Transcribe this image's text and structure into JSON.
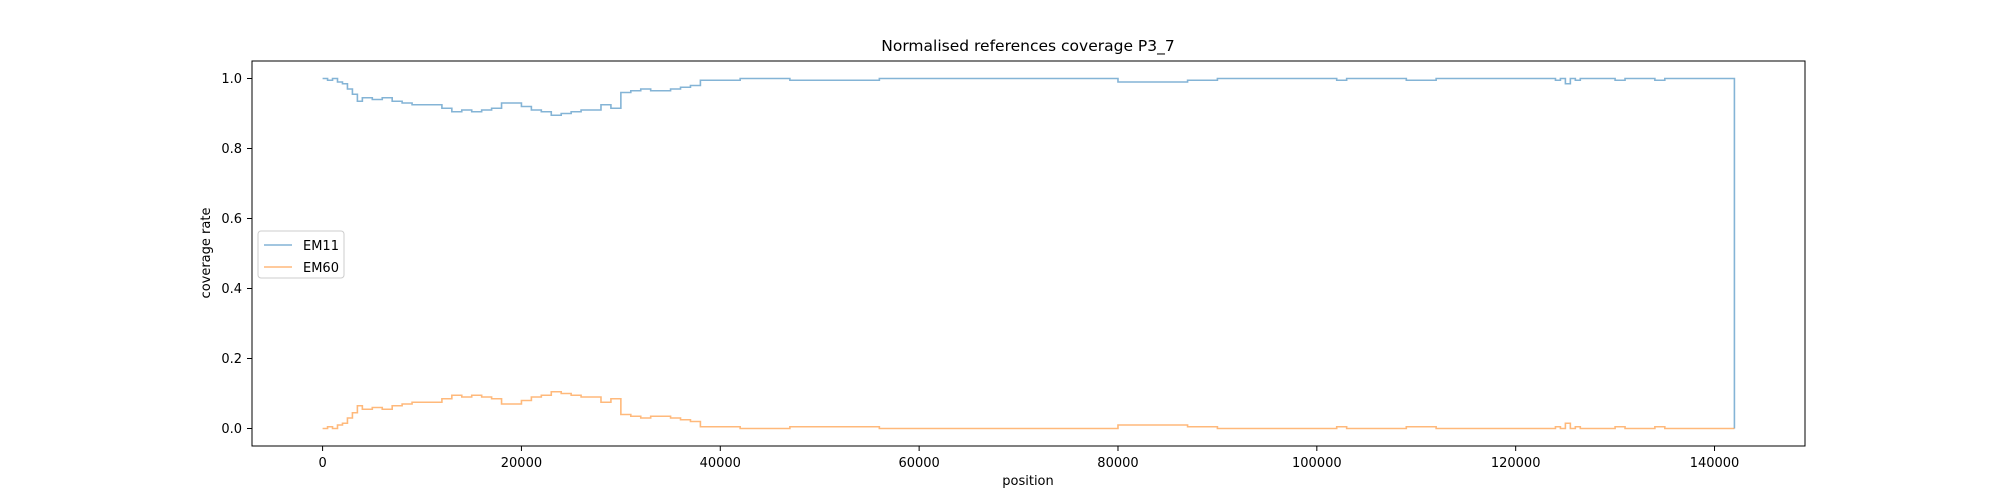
{
  "chart_data": {
    "type": "line",
    "title": "Normalised references coverage P3_7",
    "xlabel": "position",
    "ylabel": "coverage rate",
    "xlim": [
      -7100,
      149100
    ],
    "ylim": [
      -0.05,
      1.05
    ],
    "x_ticks": [
      0,
      20000,
      40000,
      60000,
      80000,
      100000,
      120000,
      140000
    ],
    "x_tick_labels": [
      "0",
      "20000",
      "40000",
      "60000",
      "80000",
      "100000",
      "120000",
      "140000"
    ],
    "y_ticks": [
      0.0,
      0.2,
      0.4,
      0.6,
      0.8,
      1.0
    ],
    "y_tick_labels": [
      "0.0",
      "0.2",
      "0.4",
      "0.6",
      "0.8",
      "1.0"
    ],
    "grid": false,
    "legend_position": "center-left",
    "series": [
      {
        "name": "EM11",
        "color": "#1f77b4",
        "x": [
          0,
          500,
          1000,
          1500,
          2000,
          2500,
          3000,
          3500,
          4000,
          5000,
          6000,
          7000,
          8000,
          9000,
          10000,
          11000,
          12000,
          13000,
          14000,
          15000,
          16000,
          17000,
          18000,
          19000,
          20000,
          21000,
          22000,
          23000,
          24000,
          25000,
          26000,
          27000,
          28000,
          29000,
          29900,
          30000,
          31000,
          32000,
          33000,
          34000,
          35000,
          36000,
          37000,
          38000,
          40000,
          42000,
          44000,
          46000,
          47000,
          50000,
          55000,
          56000,
          60000,
          70000,
          79500,
          80000,
          85000,
          87000,
          90000,
          100000,
          102000,
          103000,
          105000,
          108000,
          109000,
          112000,
          120000,
          124000,
          124500,
          125000,
          125500,
          126000,
          126500,
          130000,
          131000,
          134000,
          135000,
          138000,
          141900,
          142000
        ],
        "y": [
          1.0,
          0.995,
          1.0,
          0.99,
          0.985,
          0.97,
          0.955,
          0.935,
          0.945,
          0.94,
          0.945,
          0.935,
          0.93,
          0.925,
          0.925,
          0.925,
          0.915,
          0.905,
          0.91,
          0.905,
          0.91,
          0.915,
          0.93,
          0.93,
          0.92,
          0.91,
          0.905,
          0.895,
          0.9,
          0.905,
          0.91,
          0.91,
          0.925,
          0.915,
          0.915,
          0.96,
          0.965,
          0.97,
          0.965,
          0.965,
          0.97,
          0.975,
          0.98,
          0.995,
          0.995,
          1.0,
          1.0,
          1.0,
          0.995,
          0.995,
          0.995,
          1.0,
          1.0,
          1.0,
          1.0,
          0.99,
          0.99,
          0.995,
          1.0,
          1.0,
          0.995,
          1.0,
          1.0,
          1.0,
          0.995,
          1.0,
          1.0,
          0.995,
          1.0,
          0.985,
          1.0,
          0.995,
          1.0,
          0.995,
          1.0,
          0.995,
          1.0,
          1.0,
          1.0,
          0.0
        ]
      },
      {
        "name": "EM60",
        "color": "#ff7f0e",
        "x": [
          0,
          500,
          1000,
          1500,
          2000,
          2500,
          3000,
          3500,
          4000,
          5000,
          6000,
          7000,
          8000,
          9000,
          10000,
          11000,
          12000,
          13000,
          14000,
          15000,
          16000,
          17000,
          18000,
          19000,
          20000,
          21000,
          22000,
          23000,
          24000,
          25000,
          26000,
          27000,
          28000,
          29000,
          29900,
          30000,
          31000,
          32000,
          33000,
          34000,
          35000,
          36000,
          37000,
          38000,
          40000,
          42000,
          44000,
          46000,
          47000,
          50000,
          55000,
          56000,
          60000,
          70000,
          79500,
          80000,
          85000,
          87000,
          90000,
          100000,
          102000,
          103000,
          105000,
          108000,
          109000,
          112000,
          120000,
          124000,
          124500,
          125000,
          125500,
          126000,
          126500,
          130000,
          131000,
          134000,
          135000,
          138000,
          141900,
          142000
        ],
        "y": [
          0.0,
          0.005,
          0.0,
          0.01,
          0.015,
          0.03,
          0.045,
          0.065,
          0.055,
          0.06,
          0.055,
          0.065,
          0.07,
          0.075,
          0.075,
          0.075,
          0.085,
          0.095,
          0.09,
          0.095,
          0.09,
          0.085,
          0.07,
          0.07,
          0.08,
          0.09,
          0.095,
          0.105,
          0.1,
          0.095,
          0.09,
          0.09,
          0.075,
          0.085,
          0.085,
          0.04,
          0.035,
          0.03,
          0.035,
          0.035,
          0.03,
          0.025,
          0.02,
          0.005,
          0.005,
          0.0,
          0.0,
          0.0,
          0.005,
          0.005,
          0.005,
          0.0,
          0.0,
          0.0,
          0.0,
          0.01,
          0.01,
          0.005,
          0.0,
          0.0,
          0.005,
          0.0,
          0.0,
          0.0,
          0.005,
          0.0,
          0.0,
          0.005,
          0.0,
          0.015,
          0.0,
          0.005,
          0.0,
          0.005,
          0.0,
          0.005,
          0.0,
          0.0,
          0.0,
          0.0
        ]
      }
    ]
  }
}
